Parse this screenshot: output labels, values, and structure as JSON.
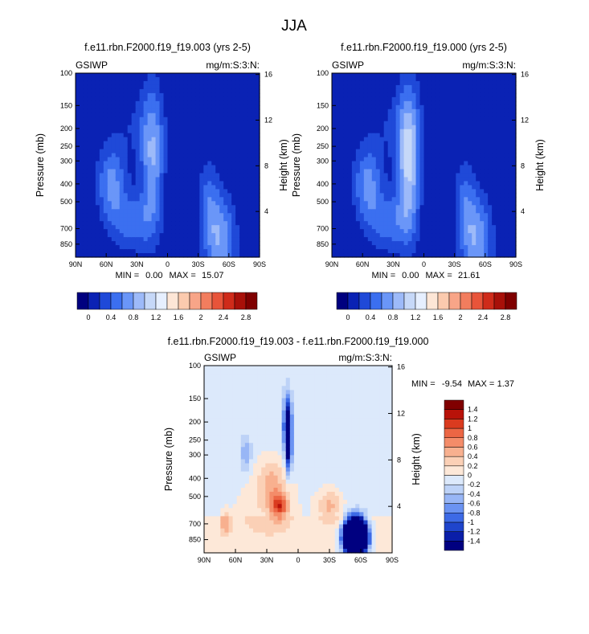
{
  "figure": {
    "title": "JJA"
  },
  "chart_data": [
    {
      "type": "heatmap",
      "title": "f.e11.rbn.F2000.f19_f19.003 (yrs 2-5)",
      "left_label": "GSIWP",
      "right_label": "mg/m:S:3:N:",
      "ylabel": "Pressure (mb)",
      "y2label": "Height (km)",
      "xticks": [
        "90N",
        "60N",
        "30N",
        "0",
        "30S",
        "60S",
        "90S"
      ],
      "yticks": [
        "100",
        "150",
        "200",
        "250",
        "300",
        "400",
        "500",
        "700",
        "850"
      ],
      "y2ticks": [
        "16",
        "12",
        "8",
        "4"
      ],
      "min_label": "MIN =",
      "min_value": "0.00",
      "max_label": "MAX =",
      "max_value": "15.07",
      "colorbar": {
        "orientation": "horizontal",
        "colors": [
          "#00007f",
          "#0a22b4",
          "#1f49d8",
          "#3b6ff0",
          "#6a96f8",
          "#9dbaf9",
          "#c6d8f8",
          "#e6efff",
          "#fde6d6",
          "#fbcaae",
          "#f8a588",
          "#f27d5e",
          "#e8543a",
          "#cf2b1a",
          "#a81009",
          "#7f0000"
        ],
        "tick_labels": [
          "0",
          "0.4",
          "0.8",
          "1.2",
          "1.6",
          "2",
          "2.4",
          "2.8"
        ]
      }
    },
    {
      "type": "heatmap",
      "title": "f.e11.rbn.F2000.f19_f19.000 (yrs 2-5)",
      "left_label": "GSIWP",
      "right_label": "mg/m:S:3:N:",
      "ylabel": "Pressure (mb)",
      "y2label": "Height (km)",
      "xticks": [
        "90N",
        "60N",
        "30N",
        "0",
        "30S",
        "60S",
        "90S"
      ],
      "yticks": [
        "100",
        "150",
        "200",
        "250",
        "300",
        "400",
        "500",
        "700",
        "850"
      ],
      "y2ticks": [
        "16",
        "12",
        "8",
        "4"
      ],
      "min_label": "MIN =",
      "min_value": "0.00",
      "max_label": "MAX =",
      "max_value": "21.61",
      "colorbar": {
        "orientation": "horizontal",
        "colors": [
          "#00007f",
          "#0a22b4",
          "#1f49d8",
          "#3b6ff0",
          "#6a96f8",
          "#9dbaf9",
          "#c6d8f8",
          "#e6efff",
          "#fde6d6",
          "#fbcaae",
          "#f8a588",
          "#f27d5e",
          "#e8543a",
          "#cf2b1a",
          "#a81009",
          "#7f0000"
        ],
        "tick_labels": [
          "0",
          "0.4",
          "0.8",
          "1.2",
          "1.6",
          "2",
          "2.4",
          "2.8"
        ]
      }
    },
    {
      "type": "heatmap",
      "title": "f.e11.rbn.F2000.f19_f19.003 - f.e11.rbn.F2000.f19_f19.000",
      "left_label": "GSIWP",
      "right_label": "mg/m:S:3:N:",
      "ylabel": "Pressure (mb)",
      "y2label": "Height (km)",
      "xticks": [
        "90N",
        "60N",
        "30N",
        "0",
        "30S",
        "60S",
        "90S"
      ],
      "yticks": [
        "100",
        "150",
        "200",
        "250",
        "300",
        "400",
        "500",
        "700",
        "850"
      ],
      "y2ticks": [
        "16",
        "12",
        "8",
        "4"
      ],
      "min_label": "MIN =",
      "min_value": "-9.54",
      "max_label": "MAX =",
      "max_value": "1.37",
      "colorbar": {
        "orientation": "vertical",
        "colors": [
          "#000080",
          "#0a1ea8",
          "#1f45cc",
          "#3d6ae6",
          "#6b93f2",
          "#98b6f6",
          "#bdd2f7",
          "#dce9fb",
          "#fde8d8",
          "#fbd0b6",
          "#f8b08f",
          "#f48c69",
          "#ec6644",
          "#da3b1f",
          "#b81209",
          "#800000"
        ],
        "tick_labels": [
          "-1.4",
          "-1.2",
          "-1",
          "-0.8",
          "-0.6",
          "-0.4",
          "-0.2",
          "0",
          "0.2",
          "0.4",
          "0.6",
          "0.8",
          "1",
          "1.2",
          "1.4"
        ]
      }
    }
  ]
}
